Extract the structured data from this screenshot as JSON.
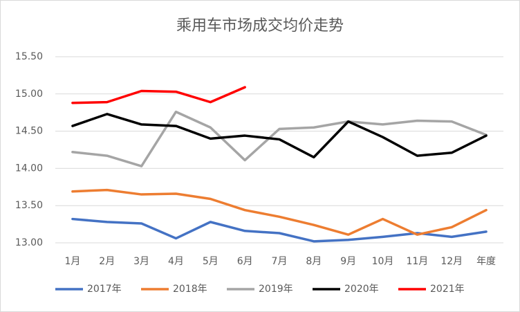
{
  "chart_data": {
    "type": "line",
    "title": "乘用车市场成交均价走势",
    "categories": [
      "1月",
      "2月",
      "3月",
      "4月",
      "5月",
      "6月",
      "7月",
      "8月",
      "9月",
      "10月",
      "11月",
      "12月",
      "年度"
    ],
    "series": [
      {
        "name": "2017年",
        "color": "#4472c4",
        "values": [
          13.32,
          13.28,
          13.26,
          13.06,
          13.28,
          13.16,
          13.13,
          13.02,
          13.04,
          13.08,
          13.13,
          13.08,
          13.15
        ]
      },
      {
        "name": "2018年",
        "color": "#ed7d31",
        "values": [
          13.69,
          13.71,
          13.65,
          13.66,
          13.59,
          13.44,
          13.35,
          13.24,
          13.11,
          13.32,
          13.11,
          13.21,
          13.44
        ]
      },
      {
        "name": "2019年",
        "color": "#a5a5a5",
        "values": [
          14.22,
          14.17,
          14.03,
          14.76,
          14.55,
          14.11,
          14.53,
          14.55,
          14.63,
          14.59,
          14.64,
          14.63,
          14.45
        ]
      },
      {
        "name": "2020年",
        "color": "#000000",
        "values": [
          14.57,
          14.73,
          14.59,
          14.57,
          14.4,
          14.44,
          14.39,
          14.15,
          14.63,
          14.42,
          14.17,
          14.21,
          14.44
        ]
      },
      {
        "name": "2021年",
        "color": "#ff0000",
        "values": [
          14.88,
          14.89,
          15.04,
          15.03,
          14.89,
          15.09,
          null,
          null,
          null,
          null,
          null,
          null,
          null
        ]
      }
    ],
    "ylim": [
      13,
      15.5
    ],
    "yticks": [
      {
        "value": 13,
        "label": "13.00"
      },
      {
        "value": 13.5,
        "label": "13.50"
      },
      {
        "value": 14,
        "label": "14.00"
      },
      {
        "value": 14.5,
        "label": "14.50"
      },
      {
        "value": 15,
        "label": "15.00"
      },
      {
        "value": 15.5,
        "label": "15.50"
      }
    ],
    "grid": true,
    "legend": "bottom"
  }
}
